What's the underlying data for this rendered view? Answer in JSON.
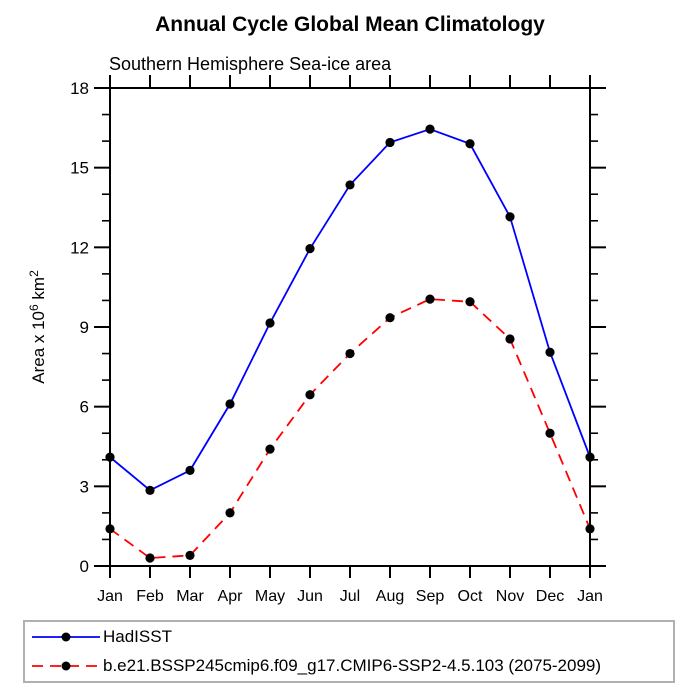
{
  "title": "Annual Cycle Global Mean Climatology",
  "subtitle": "Southern Hemisphere Sea-ice area",
  "chart_data": {
    "type": "line",
    "categories": [
      "Jan",
      "Feb",
      "Mar",
      "Apr",
      "May",
      "Jun",
      "Jul",
      "Aug",
      "Sep",
      "Oct",
      "Nov",
      "Dec",
      "Jan"
    ],
    "ylim": [
      0,
      18
    ],
    "ytick_major_values": [
      0,
      3,
      6,
      9,
      12,
      15,
      18
    ],
    "ytick_major_labels": [
      "0",
      "3",
      "6",
      "9",
      "12",
      "15",
      "18"
    ],
    "ytick_minor_step": 1,
    "ylabel_segments": [
      {
        "text": "Area x 10"
      },
      {
        "text": "6",
        "superscript": true
      },
      {
        "text": " km"
      },
      {
        "text": "2",
        "superscript": true
      }
    ],
    "grid": false,
    "legend_position": "bottom-left-box",
    "series": [
      {
        "name": "HadISST",
        "color": "#0000ff",
        "line_style": "solid",
        "marker": "filled-circle",
        "marker_color": "#000000",
        "values": [
          4.1,
          2.85,
          3.6,
          6.1,
          9.15,
          11.95,
          14.35,
          15.95,
          16.45,
          15.9,
          13.15,
          8.05,
          4.1
        ]
      },
      {
        "name": "b.e21.BSSP245cmip6.f09_g17.CMIP6-SSP2-4.5.103 (2075-2099)",
        "color": "#ff0000",
        "line_style": "dashed",
        "marker": "filled-circle",
        "marker_color": "#000000",
        "values": [
          1.4,
          0.3,
          0.4,
          2.0,
          4.4,
          6.45,
          8.0,
          9.35,
          10.05,
          9.95,
          8.55,
          5.0,
          1.4
        ]
      }
    ],
    "colors": {
      "axis": "#000000",
      "text": "#000000",
      "legend_border": "#b0b0b0",
      "background": "#ffffff"
    }
  }
}
